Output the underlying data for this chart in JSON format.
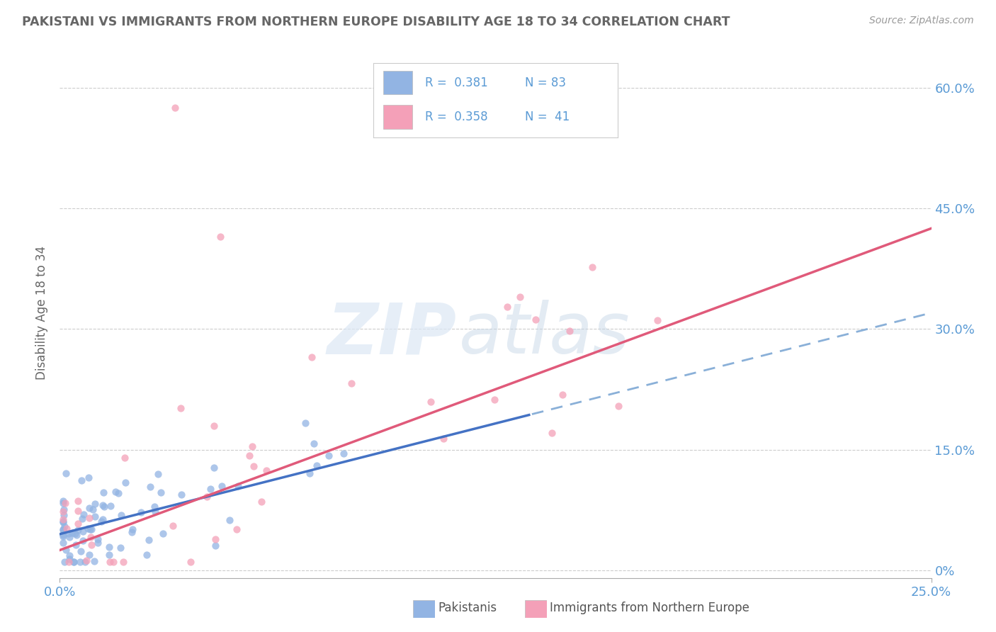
{
  "title": "PAKISTANI VS IMMIGRANTS FROM NORTHERN EUROPE DISABILITY AGE 18 TO 34 CORRELATION CHART",
  "source": "Source: ZipAtlas.com",
  "ylabel": "Disability Age 18 to 34",
  "ytick_vals": [
    0.0,
    0.15,
    0.3,
    0.45,
    0.6
  ],
  "ytick_labels": [
    "0%",
    "15.0%",
    "30.0%",
    "45.0%",
    "60.0%"
  ],
  "xlim": [
    0.0,
    0.25
  ],
  "ylim": [
    -0.01,
    0.65
  ],
  "series1_color": "#92b4e3",
  "series2_color": "#f4a0b8",
  "trend1_color": "#4472c4",
  "trend2_color": "#e05a7a",
  "trend_dashed_color": "#8ab0d8",
  "background_color": "#ffffff",
  "grid_color": "#cccccc",
  "tick_label_color": "#5b9bd5",
  "title_color": "#666666",
  "source_color": "#999999",
  "legend_r1": "R =  0.381",
  "legend_n1": "N = 83",
  "legend_r2": "R =  0.358",
  "legend_n2": "N =  41",
  "watermark_zip": "ZIP",
  "watermark_atlas": "atlas"
}
